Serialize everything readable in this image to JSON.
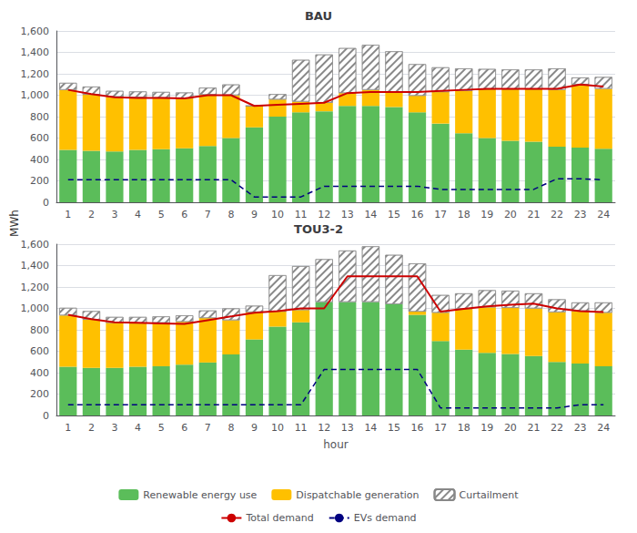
{
  "chart_data": [
    {
      "type": "bar",
      "title": "BAU",
      "ylabel": "MWh",
      "stacked": true,
      "grid": true,
      "categories": [
        1,
        2,
        3,
        4,
        5,
        6,
        7,
        8,
        9,
        10,
        11,
        12,
        13,
        14,
        15,
        16,
        17,
        18,
        19,
        20,
        21,
        22,
        23,
        24
      ],
      "ylim": [
        0,
        1600
      ],
      "yticks": [
        0,
        200,
        400,
        600,
        800,
        1000,
        1200,
        1400,
        1600
      ],
      "series": [
        {
          "name": "Renewable energy use",
          "type": "bar",
          "color": "#5BBD5A",
          "values": [
            490,
            480,
            475,
            490,
            495,
            505,
            525,
            600,
            700,
            800,
            840,
            850,
            900,
            900,
            890,
            840,
            735,
            645,
            600,
            575,
            565,
            520,
            510,
            500
          ]
        },
        {
          "name": "Dispatchable generation",
          "type": "bar",
          "color": "#FFC000",
          "values": [
            560,
            525,
            510,
            490,
            480,
            465,
            480,
            400,
            200,
            160,
            100,
            80,
            120,
            150,
            140,
            155,
            295,
            395,
            455,
            480,
            490,
            530,
            590,
            560
          ]
        },
        {
          "name": "Curtailment",
          "type": "bar",
          "color": "#FFFFFF",
          "values": [
            65,
            75,
            55,
            55,
            55,
            55,
            65,
            100,
            0,
            50,
            390,
            450,
            420,
            420,
            380,
            295,
            230,
            210,
            190,
            185,
            185,
            200,
            65,
            110
          ]
        },
        {
          "name": "Total demand",
          "type": "line",
          "color": "#CC0000",
          "line_style": "solid",
          "values": [
            1050,
            1010,
            980,
            975,
            975,
            970,
            1000,
            1000,
            900,
            910,
            920,
            930,
            1020,
            1030,
            1030,
            1030,
            1040,
            1050,
            1060,
            1060,
            1060,
            1060,
            1100,
            1080
          ]
        },
        {
          "name": "EVs demand",
          "type": "line",
          "color": "#000080",
          "line_style": "dashed",
          "values": [
            210,
            210,
            210,
            210,
            210,
            210,
            210,
            210,
            50,
            50,
            50,
            150,
            150,
            150,
            150,
            150,
            120,
            120,
            120,
            120,
            120,
            220,
            220,
            210
          ]
        }
      ]
    },
    {
      "type": "bar",
      "title": "TOU3-2",
      "xlabel": "hour",
      "stacked": true,
      "grid": true,
      "legend": "bottom",
      "categories": [
        1,
        2,
        3,
        4,
        5,
        6,
        7,
        8,
        9,
        10,
        11,
        12,
        13,
        14,
        15,
        16,
        17,
        18,
        19,
        20,
        21,
        22,
        23,
        24
      ],
      "ylim": [
        0,
        1600
      ],
      "yticks": [
        0,
        200,
        400,
        600,
        800,
        1000,
        1200,
        1400,
        1600
      ],
      "series": [
        {
          "name": "Renewable energy use",
          "type": "bar",
          "color": "#5BBD5A",
          "values": [
            455,
            445,
            445,
            455,
            460,
            475,
            495,
            570,
            710,
            830,
            870,
            1060,
            1060,
            1060,
            1040,
            940,
            695,
            615,
            585,
            575,
            555,
            500,
            485,
            460
          ]
        },
        {
          "name": "Dispatchable generation",
          "type": "bar",
          "color": "#FFC000",
          "values": [
            480,
            450,
            420,
            405,
            405,
            400,
            415,
            320,
            255,
            140,
            115,
            0,
            0,
            0,
            0,
            30,
            265,
            380,
            425,
            430,
            445,
            465,
            490,
            500
          ]
        },
        {
          "name": "Curtailment",
          "type": "bar",
          "color": "#FFFFFF",
          "values": [
            70,
            80,
            55,
            60,
            60,
            60,
            70,
            110,
            60,
            340,
            410,
            400,
            480,
            520,
            460,
            450,
            165,
            145,
            160,
            160,
            140,
            120,
            80,
            95
          ]
        },
        {
          "name": "Total demand",
          "type": "line",
          "color": "#CC0000",
          "line_style": "solid",
          "values": [
            940,
            900,
            870,
            865,
            860,
            855,
            890,
            925,
            960,
            975,
            1000,
            1000,
            1300,
            1300,
            1300,
            1300,
            970,
            995,
            1020,
            1035,
            1045,
            1000,
            975,
            965
          ]
        },
        {
          "name": "EVs demand",
          "type": "line",
          "color": "#000080",
          "line_style": "dashed",
          "values": [
            100,
            100,
            100,
            100,
            100,
            100,
            100,
            100,
            100,
            100,
            100,
            430,
            430,
            430,
            430,
            430,
            70,
            70,
            70,
            70,
            70,
            70,
            100,
            100
          ]
        }
      ]
    }
  ]
}
